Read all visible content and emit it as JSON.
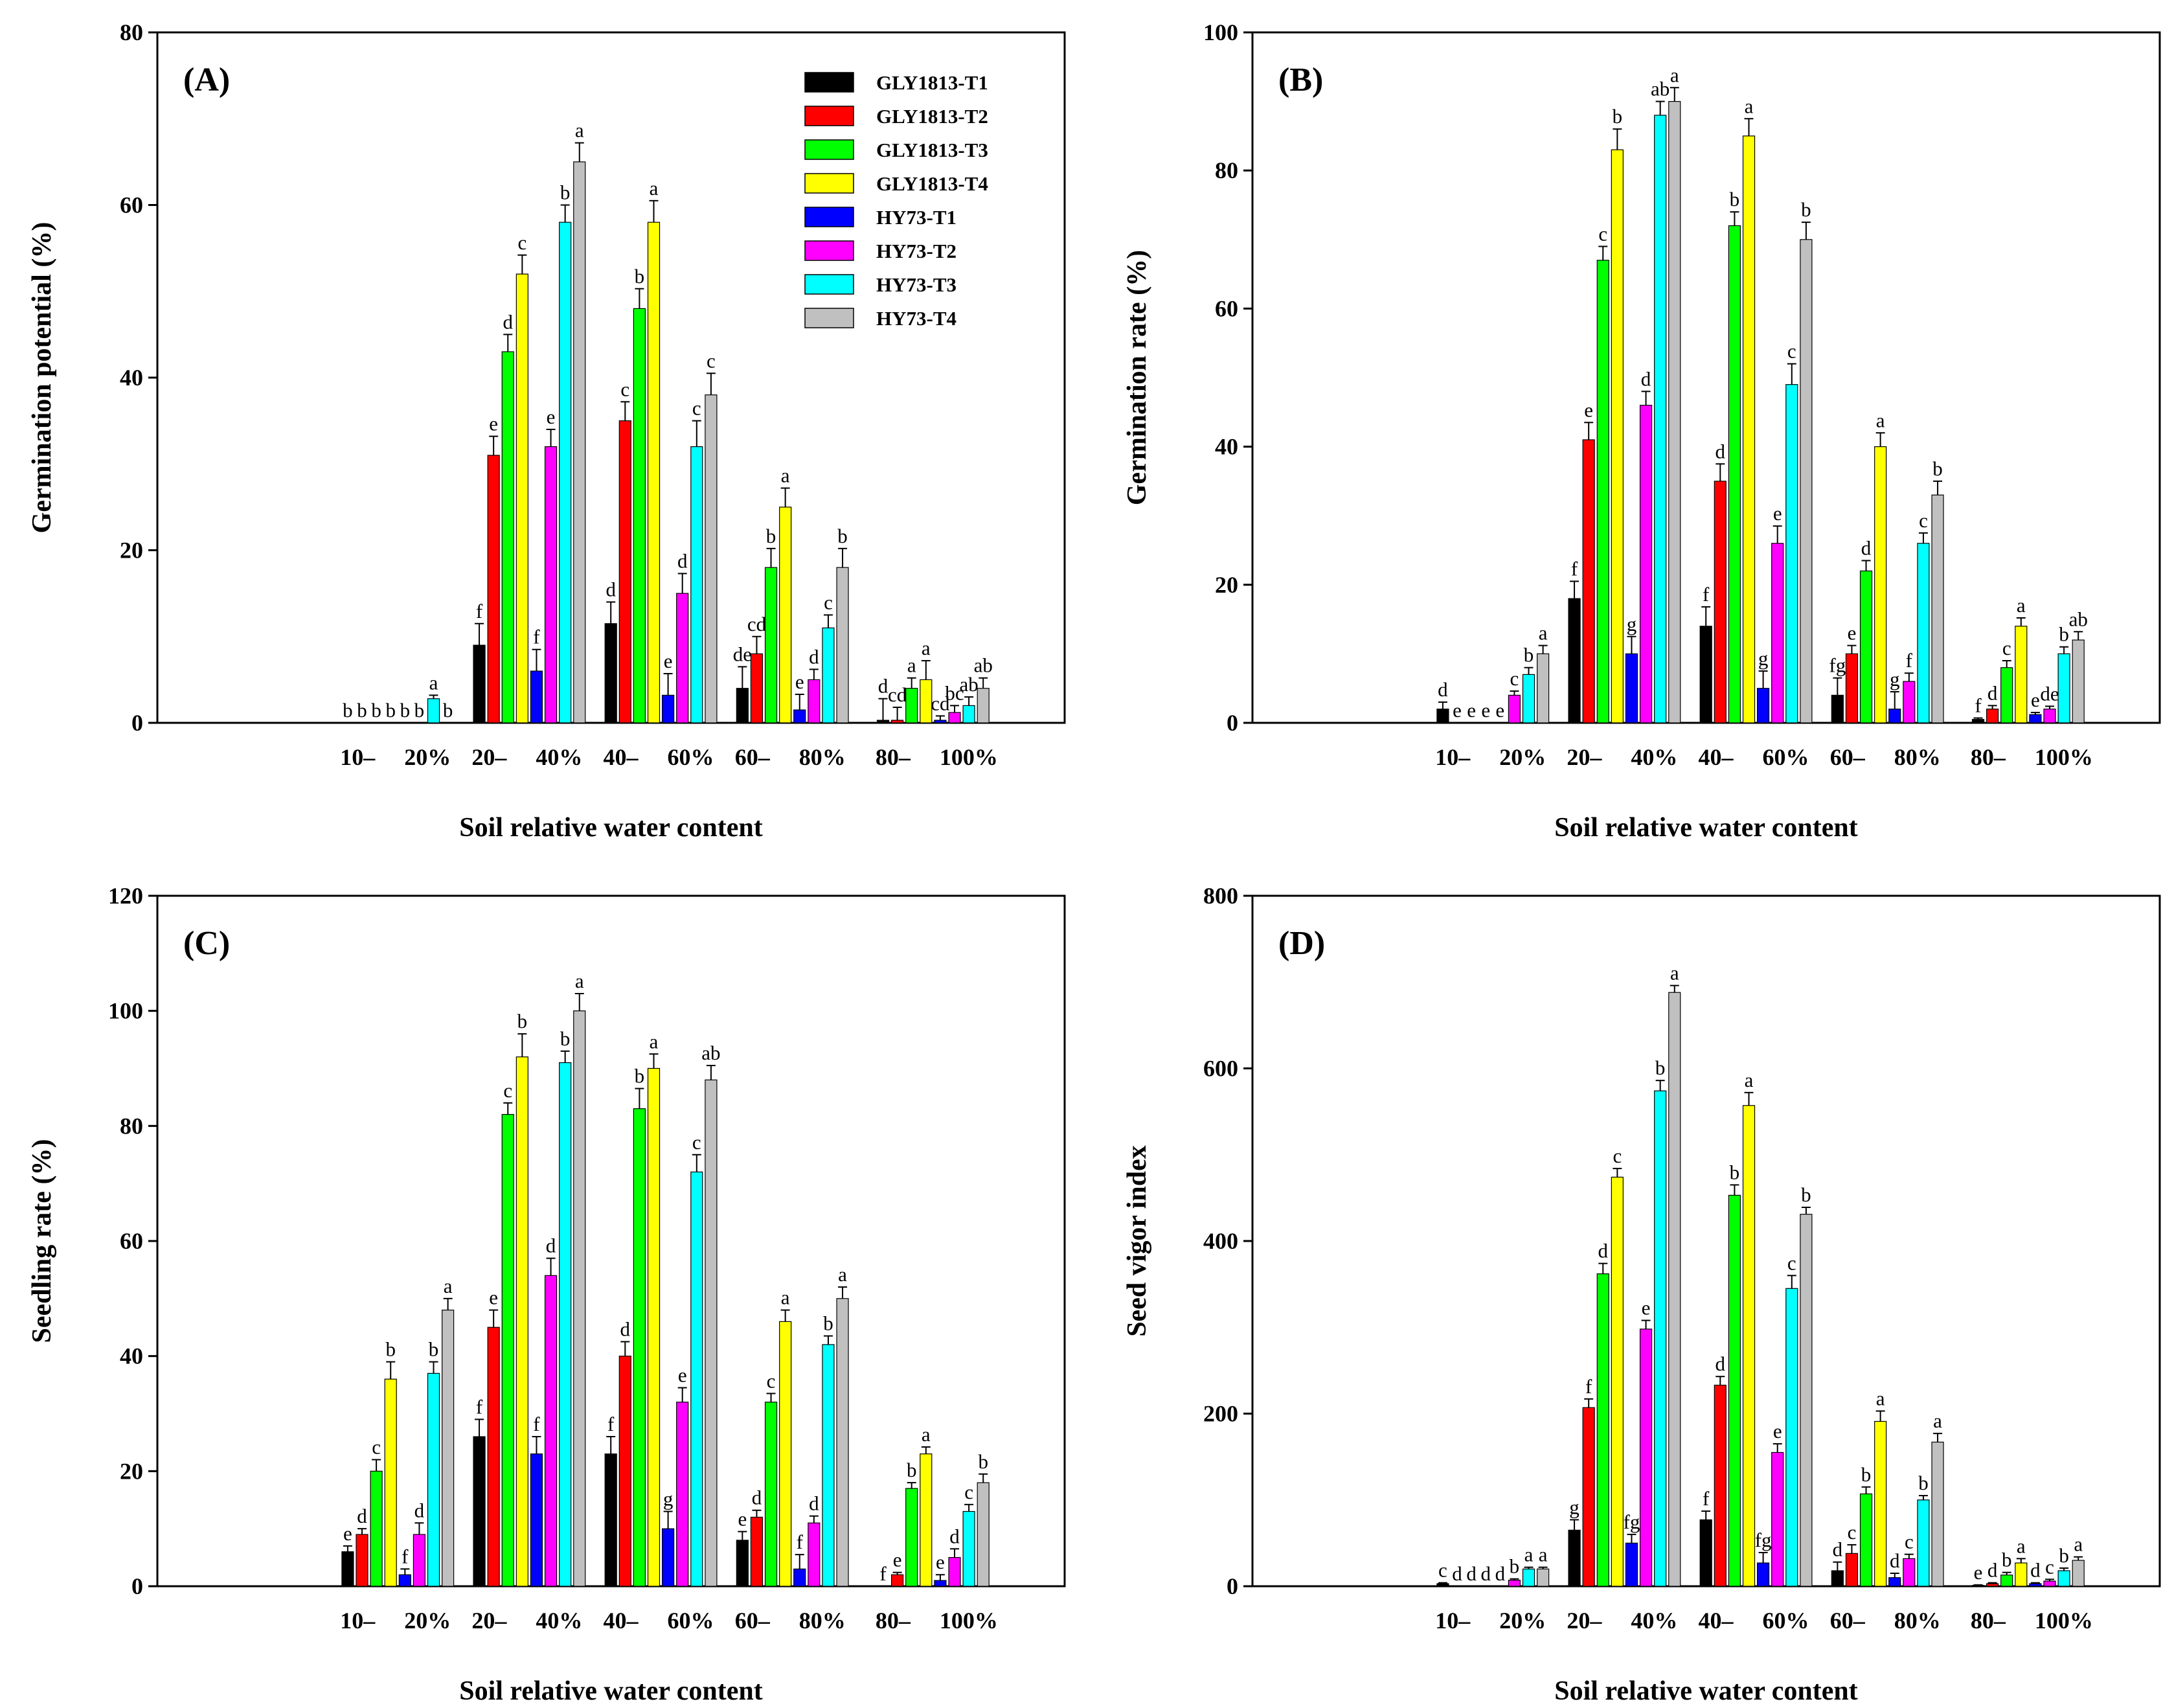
{
  "series_names": [
    "GLY1813-T1",
    "GLY1813-T2",
    "GLY1813-T3",
    "GLY1813-T4",
    "HY73-T1",
    "HY73-T2",
    "HY73-T3",
    "HY73-T4"
  ],
  "series_colors": [
    "#000000",
    "#ff0000",
    "#00ff00",
    "#ffff00",
    "#0000ff",
    "#ff00ff",
    "#00ffff",
    "#c0c0c0"
  ],
  "group_lines": [
    [
      "10–",
      "20%"
    ],
    [
      "20–",
      "40%"
    ],
    [
      "40–",
      "60%"
    ],
    [
      "60–",
      "80%"
    ],
    [
      "80–",
      "100%"
    ]
  ],
  "chart_data": [
    {
      "panel": "(A)",
      "type": "bar",
      "ylabel": "Germination potential (%)",
      "xlabel": "Soil relative water content",
      "ylim": [
        0,
        80
      ],
      "yticks": [
        0,
        20,
        40,
        60,
        80
      ],
      "categories": [
        "10–20%",
        "20–40%",
        "40–60%",
        "60–80%",
        "80–100%"
      ],
      "values": [
        [
          0,
          0,
          0,
          0,
          0,
          0,
          2.8,
          0
        ],
        [
          9,
          31,
          43,
          52,
          6,
          32,
          58,
          65
        ],
        [
          11.5,
          35,
          48,
          58,
          3.2,
          15,
          32,
          38
        ],
        [
          4,
          8,
          18,
          25,
          1.5,
          5,
          11,
          18
        ],
        [
          0.3,
          0.3,
          4,
          5,
          0.3,
          1.2,
          2,
          4
        ]
      ],
      "errors": [
        [
          0,
          0,
          0,
          0,
          0,
          0,
          0.4,
          0
        ],
        [
          2.5,
          2.2,
          2,
          2.2,
          2.5,
          2,
          2,
          2.2
        ],
        [
          2.5,
          2.2,
          2.3,
          2.5,
          2.5,
          2.3,
          3,
          2.5
        ],
        [
          2.5,
          2,
          2.2,
          2.2,
          1.8,
          1.2,
          1.5,
          2.2
        ],
        [
          2.5,
          1.5,
          1.2,
          2.2,
          0.5,
          0.8,
          1,
          1.2
        ]
      ],
      "letters": [
        [
          "b",
          "b",
          "b",
          "b",
          "b",
          "b",
          "a",
          "b"
        ],
        [
          "f",
          "e",
          "d",
          "c",
          "f",
          "e",
          "b",
          "a"
        ],
        [
          "d",
          "c",
          "b",
          "a",
          "e",
          "d",
          "c",
          "c"
        ],
        [
          "de",
          "cd",
          "b",
          "a",
          "e",
          "d",
          "c",
          "b"
        ],
        [
          "d",
          "cd",
          "a",
          "a",
          "cd",
          "bc",
          "ab",
          "ab"
        ]
      ]
    },
    {
      "panel": "(B)",
      "type": "bar",
      "ylabel": "Germination rate (%)",
      "xlabel": "Soil relative water content",
      "ylim": [
        0,
        100
      ],
      "yticks": [
        0,
        20,
        40,
        60,
        80,
        100
      ],
      "categories": [
        "10–20%",
        "20–40%",
        "40–60%",
        "60–80%",
        "80–100%"
      ],
      "values": [
        [
          2,
          0,
          0,
          0,
          0,
          4,
          7,
          10
        ],
        [
          18,
          41,
          67,
          83,
          10,
          46,
          88,
          90
        ],
        [
          14,
          35,
          72,
          85,
          5,
          26,
          49,
          70
        ],
        [
          4,
          10,
          22,
          40,
          2,
          6,
          26,
          33
        ],
        [
          0.5,
          2,
          8,
          14,
          1.2,
          2,
          10,
          12
        ]
      ],
      "errors": [
        [
          1,
          0,
          0,
          0,
          0,
          0.6,
          1,
          1.2
        ],
        [
          2.5,
          2.5,
          2,
          3,
          2.5,
          2,
          2,
          2
        ],
        [
          2.8,
          2.5,
          2,
          2.5,
          2.5,
          2.5,
          3,
          2.5
        ],
        [
          2.5,
          1.2,
          1.5,
          2,
          2.5,
          1.2,
          1.5,
          2
        ],
        [
          0.2,
          0.5,
          1,
          1.2,
          0.3,
          0.4,
          1,
          1.2
        ]
      ],
      "letters": [
        [
          "d",
          "e",
          "e",
          "e",
          "e",
          "c",
          "b",
          "a"
        ],
        [
          "f",
          "e",
          "c",
          "b",
          "g",
          "d",
          "ab",
          "a"
        ],
        [
          "f",
          "d",
          "b",
          "a",
          "g",
          "e",
          "c",
          "b"
        ],
        [
          "fg",
          "e",
          "d",
          "a",
          "g",
          "f",
          "c",
          "b"
        ],
        [
          "f",
          "d",
          "c",
          "a",
          "e",
          "de",
          "b",
          "ab"
        ]
      ]
    },
    {
      "panel": "(C)",
      "type": "bar",
      "ylabel": "Seedling rate (%)",
      "xlabel": "Soil relative water content",
      "ylim": [
        0,
        120
      ],
      "yticks": [
        0,
        20,
        40,
        60,
        80,
        100,
        120
      ],
      "categories": [
        "10–20%",
        "20–40%",
        "40–60%",
        "60–80%",
        "80–100%"
      ],
      "values": [
        [
          6,
          9,
          20,
          36,
          2,
          9,
          37,
          48
        ],
        [
          26,
          45,
          82,
          92,
          23,
          54,
          91,
          100
        ],
        [
          23,
          40,
          83,
          90,
          10,
          32,
          72,
          88
        ],
        [
          8,
          12,
          32,
          46,
          3,
          11,
          42,
          50
        ],
        [
          0,
          2,
          17,
          23,
          1,
          5,
          13,
          18
        ]
      ],
      "errors": [
        [
          1,
          1,
          2,
          3,
          1,
          2,
          2,
          2
        ],
        [
          3,
          3,
          2,
          4,
          3,
          3,
          2,
          3
        ],
        [
          3,
          2.5,
          3.5,
          2.5,
          3,
          2.5,
          3,
          2.5
        ],
        [
          1.5,
          1.2,
          1.5,
          2,
          2.5,
          1.2,
          1.5,
          2
        ],
        [
          0,
          0.4,
          1,
          1.2,
          1,
          1.5,
          1.2,
          1.5
        ]
      ],
      "letters": [
        [
          "e",
          "d",
          "c",
          "b",
          "f",
          "d",
          "b",
          "a"
        ],
        [
          "f",
          "e",
          "c",
          "b",
          "f",
          "d",
          "b",
          "a"
        ],
        [
          "f",
          "d",
          "b",
          "a",
          "g",
          "e",
          "c",
          "ab"
        ],
        [
          "e",
          "d",
          "c",
          "a",
          "f",
          "d",
          "b",
          "a"
        ],
        [
          "f",
          "e",
          "b",
          "a",
          "e",
          "d",
          "c",
          "b"
        ]
      ]
    },
    {
      "panel": "(D)",
      "type": "bar",
      "ylabel": "Seed vigor index",
      "xlabel": "Soil relative water content",
      "ylim": [
        0,
        800
      ],
      "yticks": [
        0,
        200,
        400,
        600,
        800
      ],
      "categories": [
        "10–20%",
        "20–40%",
        "40–60%",
        "60–80%",
        "80–100%"
      ],
      "values": [
        [
          3,
          0,
          0,
          0,
          0,
          7,
          20,
          20
        ],
        [
          65,
          207,
          362,
          474,
          50,
          298,
          574,
          688
        ],
        [
          77,
          233,
          453,
          557,
          27,
          155,
          345,
          431
        ],
        [
          18,
          38,
          107,
          191,
          10,
          32,
          100,
          167
        ],
        [
          1,
          3,
          13,
          27,
          3,
          6,
          18,
          30
        ]
      ],
      "errors": [
        [
          1,
          0,
          0,
          0,
          0,
          1.5,
          2,
          2
        ],
        [
          12,
          10,
          12,
          10,
          10,
          10,
          12,
          8
        ],
        [
          10,
          10,
          12,
          15,
          12,
          10,
          15,
          8
        ],
        [
          10,
          10,
          8,
          12,
          5,
          5,
          5,
          10
        ],
        [
          0.5,
          1,
          3,
          5,
          1,
          2,
          3,
          4
        ]
      ],
      "letters": [
        [
          "c",
          "d",
          "d",
          "d",
          "d",
          "b",
          "a",
          "a"
        ],
        [
          "g",
          "f",
          "d",
          "c",
          "fg",
          "e",
          "b",
          "a"
        ],
        [
          "f",
          "d",
          "b",
          "a",
          "fg",
          "e",
          "c",
          "b"
        ],
        [
          "d",
          "c",
          "b",
          "a",
          "d",
          "c",
          "b",
          "a"
        ],
        [
          "e",
          "d",
          "b",
          "a",
          "d",
          "c",
          "b",
          "a"
        ]
      ]
    }
  ]
}
